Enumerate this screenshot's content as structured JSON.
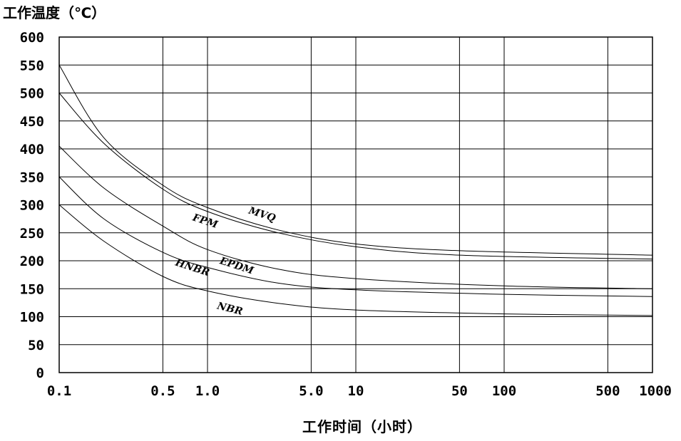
{
  "chart_data": {
    "type": "line",
    "ylabel": "工作温度（℃）",
    "xlabel": "工作时间（小时）",
    "x_scale": "log",
    "xlim": [
      0.1,
      1000
    ],
    "ylim": [
      0,
      600
    ],
    "grid": true,
    "x_ticks": [
      0.1,
      0.5,
      1.0,
      5.0,
      10,
      50,
      100,
      500,
      1000
    ],
    "x_tick_labels": [
      "0.1",
      "0.5",
      "1.0",
      "5.0",
      "10",
      "50",
      "100",
      "500",
      "1000"
    ],
    "y_ticks": [
      0,
      50,
      100,
      150,
      200,
      250,
      300,
      350,
      400,
      450,
      500,
      550,
      600
    ],
    "y_tick_labels": [
      "0",
      "50",
      "100",
      "150",
      "200",
      "250",
      "300",
      "350",
      "400",
      "450",
      "500",
      "550",
      "600"
    ],
    "series": [
      {
        "name": "MVQ",
        "x": [
          0.1,
          0.2,
          0.5,
          1.0,
          3.0,
          10,
          50,
          1000
        ],
        "y": [
          550,
          420,
          335,
          295,
          255,
          230,
          218,
          210
        ]
      },
      {
        "name": "FPM",
        "x": [
          0.1,
          0.2,
          0.5,
          1.0,
          3.0,
          10,
          50,
          1000
        ],
        "y": [
          500,
          410,
          328,
          288,
          250,
          225,
          210,
          203
        ]
      },
      {
        "name": "EPDM",
        "x": [
          0.1,
          0.2,
          0.5,
          1.0,
          3.0,
          10,
          100,
          1000
        ],
        "y": [
          405,
          330,
          262,
          220,
          185,
          168,
          155,
          150
        ]
      },
      {
        "name": "HNBR",
        "x": [
          0.1,
          0.2,
          0.5,
          1.0,
          3.0,
          10,
          100,
          1000
        ],
        "y": [
          350,
          275,
          215,
          188,
          160,
          148,
          140,
          136
        ]
      },
      {
        "name": "NBR",
        "x": [
          0.1,
          0.2,
          0.5,
          1.0,
          3.0,
          10,
          100,
          1000
        ],
        "y": [
          300,
          235,
          172,
          146,
          124,
          112,
          105,
          102
        ]
      }
    ]
  }
}
